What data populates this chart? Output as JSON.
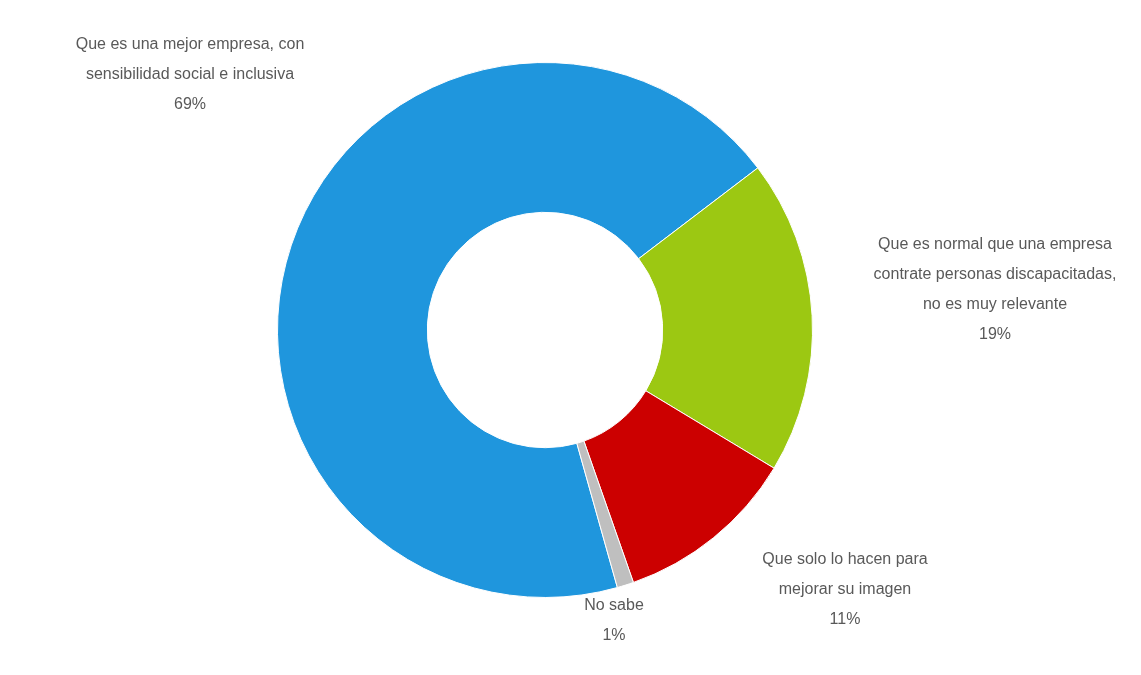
{
  "chart_data": {
    "type": "donut",
    "categories": [
      "Que es una mejor empresa, con sensibilidad social e inclusiva",
      "Que es normal que una empresa contrate personas discapacitadas, no es muy relevante",
      "Que solo lo hacen para mejorar su imagen",
      "No sabe"
    ],
    "values": [
      69,
      19,
      11,
      1
    ],
    "colors": [
      "#1f96dd",
      "#9cc812",
      "#cc0000",
      "#bfbfbf"
    ],
    "value_labels": [
      "69%",
      "19%",
      "11%",
      "1%"
    ],
    "legend": false
  }
}
